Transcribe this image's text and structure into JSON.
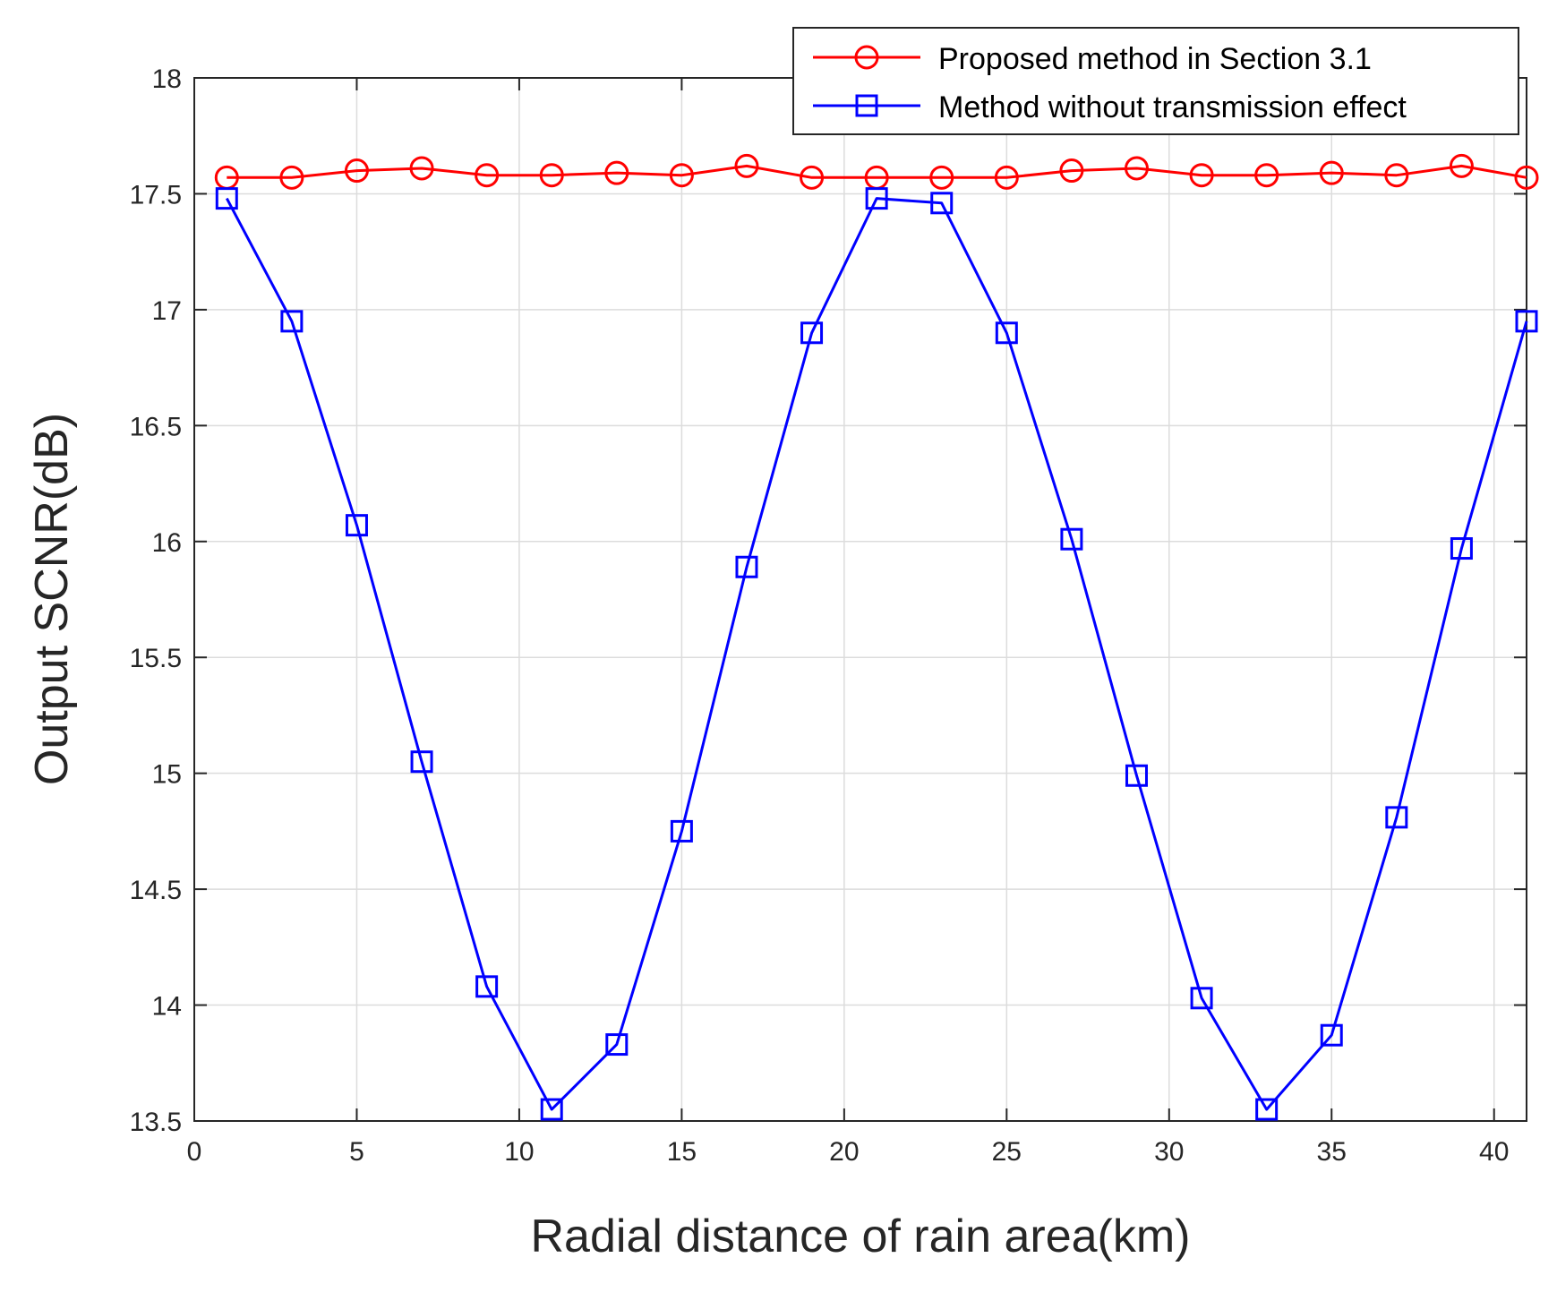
{
  "chart_data": {
    "type": "line",
    "xlabel": "Radial distance of rain area(km)",
    "ylabel": "Output SCNR(dB)",
    "xlim": [
      0,
      41
    ],
    "ylim": [
      13.5,
      18
    ],
    "xticks": [
      0,
      5,
      10,
      15,
      20,
      25,
      30,
      35,
      40
    ],
    "xtick_labels": [
      "0",
      "5",
      "10",
      "15",
      "20",
      "25",
      "30",
      "35",
      "40"
    ],
    "yticks": [
      13.5,
      14,
      14.5,
      15,
      15.5,
      16,
      16.5,
      17,
      17.5,
      18
    ],
    "ytick_labels": [
      "13.5",
      "14",
      "14.5",
      "15",
      "15.5",
      "16",
      "16.5",
      "17",
      "17.5",
      "18"
    ],
    "grid": true,
    "legend_position": "top-right",
    "x": [
      1,
      3,
      5,
      7,
      9,
      11,
      13,
      15,
      17,
      19,
      21,
      23,
      25,
      27,
      29,
      31,
      33,
      35,
      37,
      39,
      41
    ],
    "series": [
      {
        "name": "Proposed method in Section 3.1",
        "color": "#ff0000",
        "marker": "circle",
        "values": [
          17.57,
          17.57,
          17.6,
          17.61,
          17.58,
          17.58,
          17.59,
          17.58,
          17.62,
          17.57,
          17.57,
          17.57,
          17.57,
          17.6,
          17.61,
          17.58,
          17.58,
          17.59,
          17.58,
          17.62,
          17.57
        ]
      },
      {
        "name": "Method without transmission effect",
        "color": "#0000ff",
        "marker": "square",
        "values": [
          17.48,
          16.95,
          16.07,
          15.05,
          14.08,
          13.55,
          13.83,
          14.75,
          15.89,
          16.9,
          17.48,
          17.46,
          16.9,
          16.01,
          14.99,
          14.03,
          13.55,
          13.87,
          14.81,
          15.97,
          16.95
        ]
      }
    ]
  }
}
